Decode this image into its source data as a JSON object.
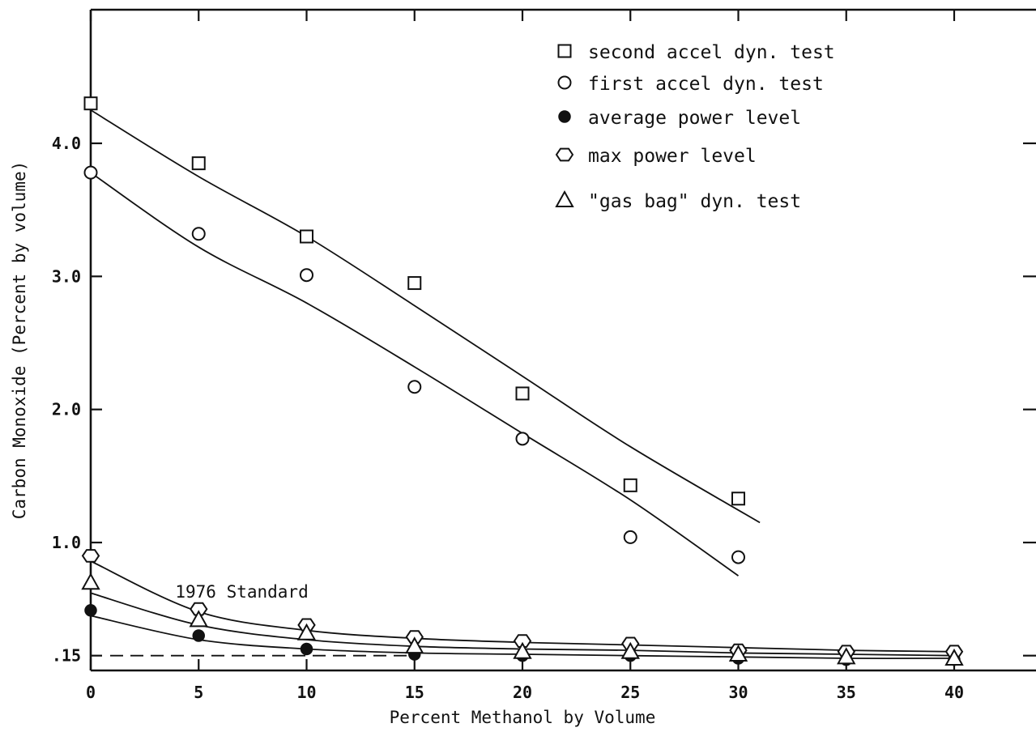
{
  "chart_data": {
    "type": "scatter",
    "title": "",
    "xlabel": "Percent Methanol by Volume",
    "ylabel": "Carbon Monoxide (Percent by volume)",
    "xlim": [
      0,
      44
    ],
    "ylim": [
      0.0,
      4.9
    ],
    "x_ticks": [
      0,
      5,
      10,
      15,
      20,
      25,
      30,
      35,
      40
    ],
    "x_tick_labels": [
      "0",
      "5",
      "10",
      "15",
      "20",
      "25",
      "30",
      "35",
      "40"
    ],
    "y_ticks": [
      0.15,
      1.0,
      2.0,
      3.0,
      4.0
    ],
    "y_tick_labels": [
      ".15",
      "1.0",
      "2.0",
      "3.0",
      "4.0"
    ],
    "grid": false,
    "legend_position": "top-right",
    "series": [
      {
        "name": "second accel dyn. test",
        "marker": "open-square",
        "x": [
          0,
          5,
          10,
          15,
          20,
          25,
          30
        ],
        "y": [
          4.3,
          3.85,
          3.3,
          2.95,
          2.12,
          1.43,
          1.33
        ],
        "fit": [
          [
            0,
            4.25
          ],
          [
            5,
            3.75
          ],
          [
            10,
            3.3
          ],
          [
            15,
            2.78
          ],
          [
            20,
            2.25
          ],
          [
            25,
            1.72
          ],
          [
            31,
            1.15
          ]
        ]
      },
      {
        "name": "first accel dyn. test",
        "marker": "open-circle",
        "x": [
          0,
          5,
          10,
          15,
          20,
          25,
          30
        ],
        "y": [
          3.78,
          3.32,
          3.01,
          2.17,
          1.78,
          1.04,
          0.89
        ],
        "fit": [
          [
            0,
            3.78
          ],
          [
            5,
            3.22
          ],
          [
            10,
            2.8
          ],
          [
            15,
            2.32
          ],
          [
            20,
            1.82
          ],
          [
            25,
            1.32
          ],
          [
            30,
            0.75
          ]
        ]
      },
      {
        "name": "average power level",
        "marker": "filled-circle",
        "x": [
          0,
          5,
          10,
          15,
          20,
          25,
          30,
          35,
          40
        ],
        "y": [
          0.49,
          0.3,
          0.2,
          0.16,
          0.15,
          0.15,
          0.13,
          0.12,
          0.12
        ],
        "fit": [
          [
            0,
            0.45
          ],
          [
            5,
            0.27
          ],
          [
            10,
            0.2
          ],
          [
            15,
            0.17
          ],
          [
            20,
            0.16
          ],
          [
            25,
            0.15
          ],
          [
            30,
            0.14
          ],
          [
            35,
            0.13
          ],
          [
            40,
            0.13
          ]
        ]
      },
      {
        "name": "max power level",
        "marker": "open-hexagon",
        "x": [
          0,
          5,
          10,
          15,
          20,
          25,
          30,
          35,
          40
        ],
        "y": [
          0.9,
          0.5,
          0.38,
          0.29,
          0.26,
          0.24,
          0.19,
          0.18,
          0.18
        ],
        "fit": [
          [
            0,
            0.86
          ],
          [
            5,
            0.48
          ],
          [
            10,
            0.34
          ],
          [
            15,
            0.28
          ],
          [
            20,
            0.25
          ],
          [
            25,
            0.23
          ],
          [
            30,
            0.21
          ],
          [
            35,
            0.19
          ],
          [
            40,
            0.18
          ]
        ]
      },
      {
        "name": "\"gas bag\" dyn. test",
        "marker": "open-triangle",
        "x": [
          0,
          5,
          10,
          15,
          20,
          25,
          30,
          35,
          40
        ],
        "y": [
          0.7,
          0.42,
          0.32,
          0.22,
          0.18,
          0.18,
          0.16,
          0.14,
          0.13
        ],
        "fit": [
          [
            0,
            0.62
          ],
          [
            5,
            0.38
          ],
          [
            10,
            0.27
          ],
          [
            15,
            0.22
          ],
          [
            20,
            0.2
          ],
          [
            25,
            0.19
          ],
          [
            30,
            0.17
          ],
          [
            35,
            0.16
          ],
          [
            40,
            0.15
          ]
        ]
      }
    ],
    "reference_lines": [
      {
        "label": "1976 Standard",
        "y": 0.15,
        "x_range": [
          0,
          15
        ],
        "style": "dashed"
      }
    ]
  }
}
